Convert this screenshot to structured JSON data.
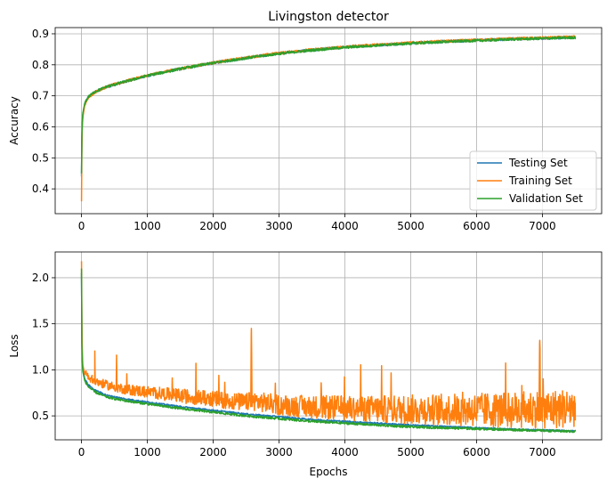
{
  "chart_data": [
    {
      "type": "line",
      "title": "Livingston detector",
      "xlabel": "",
      "ylabel": "Accuracy",
      "xlim": [
        -400,
        7900
      ],
      "ylim": [
        0.32,
        0.92
      ],
      "xticks": [
        0,
        1000,
        2000,
        3000,
        4000,
        5000,
        6000,
        7000
      ],
      "yticks": [
        0.4,
        0.5,
        0.6,
        0.7,
        0.8,
        0.9
      ],
      "ytick_labels": [
        "0.4",
        "0.5",
        "0.6",
        "0.7",
        "0.8",
        "0.9"
      ],
      "grid": true,
      "legend": "lower-right",
      "series": [
        {
          "name": "Testing Set",
          "color": "#1f77b4",
          "x": [
            0,
            5,
            10,
            20,
            50,
            100,
            200,
            400,
            700,
            1000,
            1500,
            2000,
            2500,
            3000,
            3500,
            4000,
            4500,
            5000,
            5500,
            6000,
            6500,
            7000,
            7500
          ],
          "y": [
            0.44,
            0.55,
            0.6,
            0.64,
            0.675,
            0.695,
            0.712,
            0.73,
            0.748,
            0.765,
            0.787,
            0.806,
            0.822,
            0.837,
            0.848,
            0.857,
            0.864,
            0.87,
            0.875,
            0.879,
            0.883,
            0.886,
            0.889
          ]
        },
        {
          "name": "Training Set",
          "color": "#ff7f0e",
          "x": [
            0,
            5,
            10,
            20,
            50,
            100,
            200,
            400,
            700,
            1000,
            1500,
            2000,
            2500,
            3000,
            3500,
            4000,
            4500,
            5000,
            5500,
            6000,
            6500,
            7000,
            7500
          ],
          "y": [
            0.36,
            0.52,
            0.59,
            0.63,
            0.672,
            0.694,
            0.711,
            0.731,
            0.749,
            0.766,
            0.788,
            0.807,
            0.823,
            0.838,
            0.849,
            0.858,
            0.865,
            0.871,
            0.876,
            0.88,
            0.884,
            0.887,
            0.89
          ]
        },
        {
          "name": "Validation Set",
          "color": "#2ca02c",
          "x": [
            0,
            5,
            10,
            20,
            50,
            100,
            200,
            400,
            700,
            1000,
            1500,
            2000,
            2500,
            3000,
            3500,
            4000,
            4500,
            5000,
            5500,
            6000,
            6500,
            7000,
            7500
          ],
          "y": [
            0.45,
            0.56,
            0.61,
            0.645,
            0.677,
            0.696,
            0.713,
            0.731,
            0.748,
            0.765,
            0.787,
            0.806,
            0.822,
            0.836,
            0.847,
            0.856,
            0.863,
            0.869,
            0.874,
            0.878,
            0.882,
            0.885,
            0.888
          ]
        }
      ]
    },
    {
      "type": "line",
      "title": "",
      "xlabel": "Epochs",
      "ylabel": "Loss",
      "xlim": [
        -400,
        7900
      ],
      "ylim": [
        0.24,
        2.28
      ],
      "xticks": [
        0,
        1000,
        2000,
        3000,
        4000,
        5000,
        6000,
        7000
      ],
      "yticks": [
        0.5,
        1.0,
        1.5,
        2.0
      ],
      "ytick_labels": [
        "0.5",
        "1.0",
        "1.5",
        "2.0"
      ],
      "grid": true,
      "legend": "none",
      "series": [
        {
          "name": "Testing Set",
          "color": "#1f77b4",
          "x": [
            0,
            5,
            10,
            20,
            50,
            100,
            200,
            400,
            700,
            1000,
            1500,
            2000,
            2500,
            3000,
            3500,
            4000,
            4500,
            5000,
            5500,
            6000,
            6500,
            7000,
            7500
          ],
          "y": [
            2.05,
            1.4,
            1.15,
            1.0,
            0.9,
            0.84,
            0.78,
            0.72,
            0.68,
            0.65,
            0.6,
            0.56,
            0.52,
            0.49,
            0.46,
            0.44,
            0.42,
            0.4,
            0.385,
            0.37,
            0.355,
            0.345,
            0.335
          ]
        },
        {
          "name": "Training Set",
          "color": "#ff7f0e",
          "x": [
            0,
            5,
            10,
            20,
            50,
            100,
            200,
            400,
            700,
            1000,
            1500,
            2000,
            2500,
            2570,
            2580,
            2590,
            3000,
            3500,
            4000,
            4500,
            5000,
            5500,
            6000,
            6500,
            6950,
            6960,
            6970,
            7000,
            7500
          ],
          "y": [
            2.18,
            1.6,
            1.25,
            1.05,
            0.95,
            0.9,
            0.85,
            0.8,
            0.75,
            0.72,
            0.67,
            0.63,
            0.58,
            0.6,
            1.45,
            0.6,
            0.55,
            0.52,
            0.5,
            0.48,
            0.47,
            0.46,
            0.45,
            0.44,
            0.45,
            1.32,
            0.45,
            0.44,
            0.45
          ]
        },
        {
          "name": "Validation Set",
          "color": "#2ca02c",
          "x": [
            0,
            5,
            10,
            20,
            50,
            100,
            200,
            400,
            700,
            1000,
            1500,
            2000,
            2500,
            3000,
            3500,
            4000,
            4500,
            5000,
            5500,
            6000,
            6500,
            7000,
            7500
          ],
          "y": [
            2.1,
            1.3,
            1.1,
            0.98,
            0.88,
            0.82,
            0.76,
            0.7,
            0.66,
            0.63,
            0.58,
            0.54,
            0.5,
            0.47,
            0.44,
            0.42,
            0.4,
            0.38,
            0.37,
            0.36,
            0.35,
            0.34,
            0.33
          ]
        }
      ]
    }
  ]
}
